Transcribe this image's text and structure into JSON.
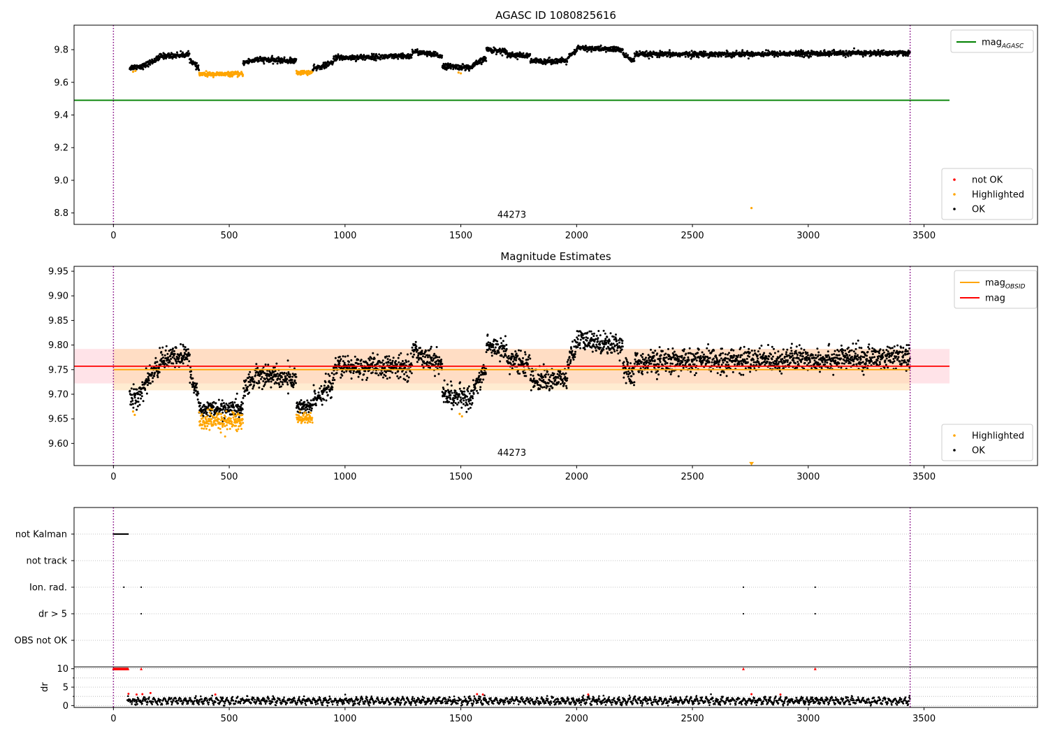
{
  "chart_data": [
    {
      "type": "scatter",
      "title": "AGASC ID 1080825616",
      "xlim": [
        -170,
        3990
      ],
      "ylim": [
        8.73,
        9.95
      ],
      "x_ticks": [
        0,
        500,
        1000,
        1500,
        2000,
        2500,
        3000,
        3500
      ],
      "y_ticks": [
        8.8,
        9.0,
        9.2,
        9.4,
        9.6,
        9.8
      ],
      "annotations": [
        {
          "text": "44273",
          "x": 1720,
          "y": 8.77
        }
      ],
      "vertical_lines": [
        0,
        3440
      ],
      "hlines": [
        {
          "name": "mag_AGASC",
          "label_main": "mag",
          "label_sub": "AGASC",
          "y": 9.49,
          "xmin": -170,
          "xmax": 3610,
          "color": "#008000"
        }
      ],
      "legend_lines": [
        {
          "name": "mag_AGASC",
          "label_main": "mag",
          "label_sub": "AGASC",
          "color": "#008000"
        }
      ],
      "legend_points": [
        {
          "name": "not OK",
          "color": "#ff0000"
        },
        {
          "name": "Highlighted",
          "color": "#ffa500"
        },
        {
          "name": "OK",
          "color": "#000000"
        }
      ],
      "segments": [
        {
          "x0": 70,
          "x1": 130,
          "y0": 9.69,
          "y1": 9.7,
          "amp": 0.015,
          "hl": false
        },
        {
          "x0": 130,
          "x1": 200,
          "y0": 9.7,
          "y1": 9.75,
          "amp": 0.015,
          "hl": false
        },
        {
          "x0": 200,
          "x1": 330,
          "y0": 9.76,
          "y1": 9.77,
          "amp": 0.015,
          "hl": false
        },
        {
          "x0": 330,
          "x1": 370,
          "y0": 9.74,
          "y1": 9.68,
          "amp": 0.015,
          "hl": false
        },
        {
          "x0": 370,
          "x1": 560,
          "y0": 9.65,
          "y1": 9.65,
          "amp": 0.012,
          "hl": true
        },
        {
          "x0": 560,
          "x1": 620,
          "y0": 9.72,
          "y1": 9.74,
          "amp": 0.015,
          "hl": false
        },
        {
          "x0": 620,
          "x1": 790,
          "y0": 9.74,
          "y1": 9.73,
          "amp": 0.015,
          "hl": false
        },
        {
          "x0": 790,
          "x1": 860,
          "y0": 9.66,
          "y1": 9.66,
          "amp": 0.012,
          "hl": true
        },
        {
          "x0": 860,
          "x1": 950,
          "y0": 9.68,
          "y1": 9.72,
          "amp": 0.015,
          "hl": false
        },
        {
          "x0": 950,
          "x1": 1290,
          "y0": 9.75,
          "y1": 9.76,
          "amp": 0.015,
          "hl": false
        },
        {
          "x0": 1290,
          "x1": 1420,
          "y0": 9.79,
          "y1": 9.76,
          "amp": 0.015,
          "hl": false
        },
        {
          "x0": 1420,
          "x1": 1550,
          "y0": 9.7,
          "y1": 9.69,
          "amp": 0.015,
          "hl": false
        },
        {
          "x0": 1550,
          "x1": 1610,
          "y0": 9.7,
          "y1": 9.75,
          "amp": 0.015,
          "hl": false
        },
        {
          "x0": 1610,
          "x1": 1700,
          "y0": 9.8,
          "y1": 9.79,
          "amp": 0.015,
          "hl": false
        },
        {
          "x0": 1700,
          "x1": 1800,
          "y0": 9.77,
          "y1": 9.76,
          "amp": 0.015,
          "hl": false
        },
        {
          "x0": 1800,
          "x1": 1960,
          "y0": 9.73,
          "y1": 9.73,
          "amp": 0.015,
          "hl": false
        },
        {
          "x0": 1960,
          "x1": 2000,
          "y0": 9.75,
          "y1": 9.79,
          "amp": 0.015,
          "hl": false
        },
        {
          "x0": 2000,
          "x1": 2200,
          "y0": 9.81,
          "y1": 9.8,
          "amp": 0.015,
          "hl": false
        },
        {
          "x0": 2200,
          "x1": 2250,
          "y0": 9.77,
          "y1": 9.73,
          "amp": 0.015,
          "hl": false
        },
        {
          "x0": 2250,
          "x1": 3440,
          "y0": 9.77,
          "y1": 9.78,
          "amp": 0.015,
          "hl": false
        }
      ],
      "highlight_extra": [
        {
          "x": 85,
          "y": 9.665
        },
        {
          "x": 95,
          "y": 9.67
        },
        {
          "x": 1490,
          "y": 9.66
        },
        {
          "x": 1500,
          "y": 9.655
        },
        {
          "x": 2755,
          "y": 8.83
        }
      ]
    },
    {
      "type": "scatter",
      "title": "Magnitude Estimates",
      "xlim": [
        -170,
        3990
      ],
      "ylim": [
        9.555,
        9.96
      ],
      "x_ticks": [
        0,
        500,
        1000,
        1500,
        2000,
        2500,
        3000,
        3500
      ],
      "y_ticks": [
        9.6,
        9.65,
        9.7,
        9.75,
        9.8,
        9.85,
        9.9,
        9.95
      ],
      "annotations": [
        {
          "text": "44273",
          "x": 1720,
          "y": 9.575
        }
      ],
      "vertical_lines": [
        0,
        3440
      ],
      "bands": [
        {
          "y0": 9.722,
          "y1": 9.792,
          "xmin": -170,
          "xmax": 3610,
          "color": "#ffc0cb",
          "opacity": 0.45
        },
        {
          "y0": 9.708,
          "y1": 9.792,
          "xmin": 0,
          "xmax": 3440,
          "color": "#ffd59a",
          "opacity": 0.45
        }
      ],
      "hlines": [
        {
          "name": "mag_OBSID",
          "label_main": "mag",
          "label_sub": "OBSID",
          "y": 9.75,
          "xmin": 0,
          "xmax": 3440,
          "color": "#ffa500"
        },
        {
          "name": "mag",
          "label_main": "mag",
          "label_sub": "",
          "y": 9.757,
          "xmin": -170,
          "xmax": 3610,
          "color": "#ff0000"
        }
      ],
      "legend_lines": [
        {
          "name": "mag_OBSID",
          "label_main": "mag",
          "label_sub": "OBSID",
          "color": "#ffa500"
        },
        {
          "name": "mag",
          "label_main": "mag",
          "label_sub": "",
          "color": "#ff0000"
        }
      ],
      "legend_points": [
        {
          "name": "Highlighted",
          "color": "#ffa500"
        },
        {
          "name": "OK",
          "color": "#000000"
        }
      ],
      "segments": [
        {
          "x0": 70,
          "x1": 130,
          "y0": 9.69,
          "y1": 9.7,
          "amp": 0.02,
          "hl": false
        },
        {
          "x0": 130,
          "x1": 200,
          "y0": 9.72,
          "y1": 9.76,
          "amp": 0.02,
          "hl": false
        },
        {
          "x0": 200,
          "x1": 330,
          "y0": 9.77,
          "y1": 9.78,
          "amp": 0.02,
          "hl": false
        },
        {
          "x0": 330,
          "x1": 370,
          "y0": 9.74,
          "y1": 9.69,
          "amp": 0.02,
          "hl": false
        },
        {
          "x0": 370,
          "x1": 560,
          "y0": 9.67,
          "y1": 9.67,
          "amp": 0.015,
          "hl": false
        },
        {
          "x0": 370,
          "x1": 560,
          "y0": 9.645,
          "y1": 9.645,
          "amp": 0.018,
          "hl": true
        },
        {
          "x0": 560,
          "x1": 620,
          "y0": 9.71,
          "y1": 9.74,
          "amp": 0.02,
          "hl": false
        },
        {
          "x0": 620,
          "x1": 790,
          "y0": 9.74,
          "y1": 9.73,
          "amp": 0.02,
          "hl": false
        },
        {
          "x0": 790,
          "x1": 860,
          "y0": 9.675,
          "y1": 9.675,
          "amp": 0.015,
          "hl": false
        },
        {
          "x0": 790,
          "x1": 860,
          "y0": 9.65,
          "y1": 9.65,
          "amp": 0.012,
          "hl": true
        },
        {
          "x0": 860,
          "x1": 950,
          "y0": 9.69,
          "y1": 9.72,
          "amp": 0.02,
          "hl": false
        },
        {
          "x0": 950,
          "x1": 1290,
          "y0": 9.755,
          "y1": 9.755,
          "amp": 0.02,
          "hl": false
        },
        {
          "x0": 1290,
          "x1": 1420,
          "y0": 9.79,
          "y1": 9.76,
          "amp": 0.02,
          "hl": false
        },
        {
          "x0": 1420,
          "x1": 1550,
          "y0": 9.7,
          "y1": 9.69,
          "amp": 0.02,
          "hl": false
        },
        {
          "x0": 1550,
          "x1": 1610,
          "y0": 9.71,
          "y1": 9.75,
          "amp": 0.02,
          "hl": false
        },
        {
          "x0": 1610,
          "x1": 1700,
          "y0": 9.8,
          "y1": 9.79,
          "amp": 0.02,
          "hl": false
        },
        {
          "x0": 1700,
          "x1": 1800,
          "y0": 9.77,
          "y1": 9.76,
          "amp": 0.02,
          "hl": false
        },
        {
          "x0": 1800,
          "x1": 1960,
          "y0": 9.73,
          "y1": 9.73,
          "amp": 0.02,
          "hl": false
        },
        {
          "x0": 1960,
          "x1": 2000,
          "y0": 9.76,
          "y1": 9.8,
          "amp": 0.02,
          "hl": false
        },
        {
          "x0": 2000,
          "x1": 2200,
          "y0": 9.81,
          "y1": 9.8,
          "amp": 0.02,
          "hl": false
        },
        {
          "x0": 2200,
          "x1": 2250,
          "y0": 9.76,
          "y1": 9.73,
          "amp": 0.02,
          "hl": false
        },
        {
          "x0": 2250,
          "x1": 3440,
          "y0": 9.765,
          "y1": 9.775,
          "amp": 0.022,
          "hl": false
        }
      ],
      "highlight_extra": [
        {
          "x": 85,
          "y": 9.665
        },
        {
          "x": 92,
          "y": 9.658
        },
        {
          "x": 1495,
          "y": 9.66
        },
        {
          "x": 1505,
          "y": 9.655
        }
      ],
      "highlight_marker": {
        "x": 2755,
        "y": 9.558
      }
    },
    {
      "type": "scatter",
      "categories": [
        "not Kalman",
        "not track",
        "Ion. rad.",
        "dr > 5",
        "OBS not OK"
      ],
      "xlim": [
        -170,
        3990
      ],
      "vertical_lines": [
        0,
        3440
      ],
      "flag_points": [
        {
          "row": "not Kalman",
          "x0": 0,
          "x1": 65,
          "step": 3
        },
        {
          "row": "Ion. rad.",
          "xs": [
            45,
            120,
            2720,
            3030
          ]
        },
        {
          "row": "dr > 5",
          "xs": [
            120,
            2720,
            3030
          ]
        }
      ]
    },
    {
      "type": "scatter",
      "ylabel": "dr",
      "xlim": [
        -170,
        3990
      ],
      "ylim": [
        -0.5,
        10.5
      ],
      "x_ticks": [
        0,
        500,
        1000,
        1500,
        2000,
        2500,
        3000,
        3500
      ],
      "y_ticks": [
        0,
        5,
        10
      ],
      "vertical_lines": [
        0,
        3440
      ],
      "dr_range": [
        60,
        3440
      ],
      "dr_mean": 1.3,
      "dr_amp": 0.9,
      "red_high": [
        {
          "x0": 0,
          "x1": 65,
          "step": 3,
          "y": 10
        },
        {
          "x": 120,
          "y": 10
        },
        {
          "x": 2720,
          "y": 10
        },
        {
          "x": 3030,
          "y": 10
        }
      ],
      "red_low": [
        {
          "x": 65,
          "y": 3.2
        },
        {
          "x": 100,
          "y": 3.0
        },
        {
          "x": 125,
          "y": 3.1
        },
        {
          "x": 160,
          "y": 3.4
        },
        {
          "x": 440,
          "y": 3.0
        },
        {
          "x": 1570,
          "y": 3.1
        },
        {
          "x": 1595,
          "y": 3.0
        },
        {
          "x": 2050,
          "y": 3.0
        },
        {
          "x": 2755,
          "y": 3.1
        },
        {
          "x": 2880,
          "y": 3.0
        }
      ]
    }
  ]
}
